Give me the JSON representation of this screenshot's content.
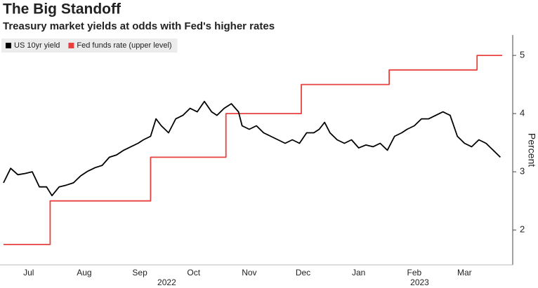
{
  "chart_data": {
    "type": "line",
    "title": "The Big Standoff",
    "subtitle": "Treasury market yields at odds with Fed's higher rates",
    "y_label": "Percent",
    "y_axis_side": "right",
    "legend": "top-left",
    "grid": false,
    "xlim": [
      0,
      278
    ],
    "ylim": [
      1.4,
      5.35
    ],
    "yticks": [
      2,
      3,
      4,
      5
    ],
    "xticks": [
      {
        "value": 14,
        "label": "Jul"
      },
      {
        "value": 45,
        "label": "Aug"
      },
      {
        "value": 76,
        "label": "Sep"
      },
      {
        "value": 106,
        "label": "Oct"
      },
      {
        "value": 137,
        "label": "Nov"
      },
      {
        "value": 167,
        "label": "Dec"
      },
      {
        "value": 198,
        "label": "Jan"
      },
      {
        "value": 229,
        "label": "Feb"
      },
      {
        "value": 257,
        "label": "Mar"
      }
    ],
    "year_ticks": [
      {
        "value": 91,
        "label": "2022"
      },
      {
        "value": 232,
        "label": "2023"
      }
    ],
    "series": [
      {
        "name": "US 10yr yield",
        "color": "#000000",
        "x": [
          0,
          4,
          8,
          12,
          16,
          20,
          24,
          27,
          31,
          35,
          39,
          43,
          47,
          51,
          55,
          59,
          63,
          67,
          71,
          75,
          78,
          82,
          85,
          88,
          92,
          96,
          100,
          104,
          108,
          112,
          116,
          119,
          123,
          127,
          131,
          133,
          137,
          141,
          145,
          149,
          153,
          157,
          161,
          165,
          169,
          173,
          176,
          179,
          182,
          186,
          190,
          194,
          198,
          202,
          206,
          210,
          214,
          218,
          222,
          225,
          229,
          233,
          237,
          241,
          245,
          249,
          253,
          257,
          261,
          265,
          269,
          273,
          277
        ],
        "values": [
          2.81,
          3.06,
          2.95,
          2.97,
          3.0,
          2.74,
          2.74,
          2.59,
          2.74,
          2.77,
          2.81,
          2.93,
          3.01,
          3.07,
          3.11,
          3.25,
          3.29,
          3.37,
          3.43,
          3.49,
          3.55,
          3.61,
          3.91,
          3.79,
          3.67,
          3.91,
          3.97,
          4.09,
          4.03,
          4.21,
          4.03,
          3.97,
          4.09,
          4.17,
          4.03,
          3.79,
          3.73,
          3.79,
          3.67,
          3.61,
          3.55,
          3.49,
          3.55,
          3.49,
          3.67,
          3.67,
          3.73,
          3.85,
          3.67,
          3.55,
          3.49,
          3.55,
          3.41,
          3.46,
          3.43,
          3.49,
          3.37,
          3.61,
          3.67,
          3.73,
          3.79,
          3.91,
          3.91,
          3.97,
          4.03,
          3.97,
          3.61,
          3.49,
          3.43,
          3.55,
          3.49,
          3.37,
          3.25
        ]
      },
      {
        "name": "Fed funds rate (upper level)",
        "color": "#e8413f",
        "x": [
          0,
          26,
          26,
          82,
          82,
          124,
          124,
          166,
          166,
          215,
          215,
          264,
          264,
          278
        ],
        "values": [
          1.75,
          1.75,
          2.5,
          2.5,
          3.25,
          3.25,
          4,
          4,
          4.5,
          4.5,
          4.75,
          4.75,
          5,
          5
        ]
      }
    ]
  }
}
